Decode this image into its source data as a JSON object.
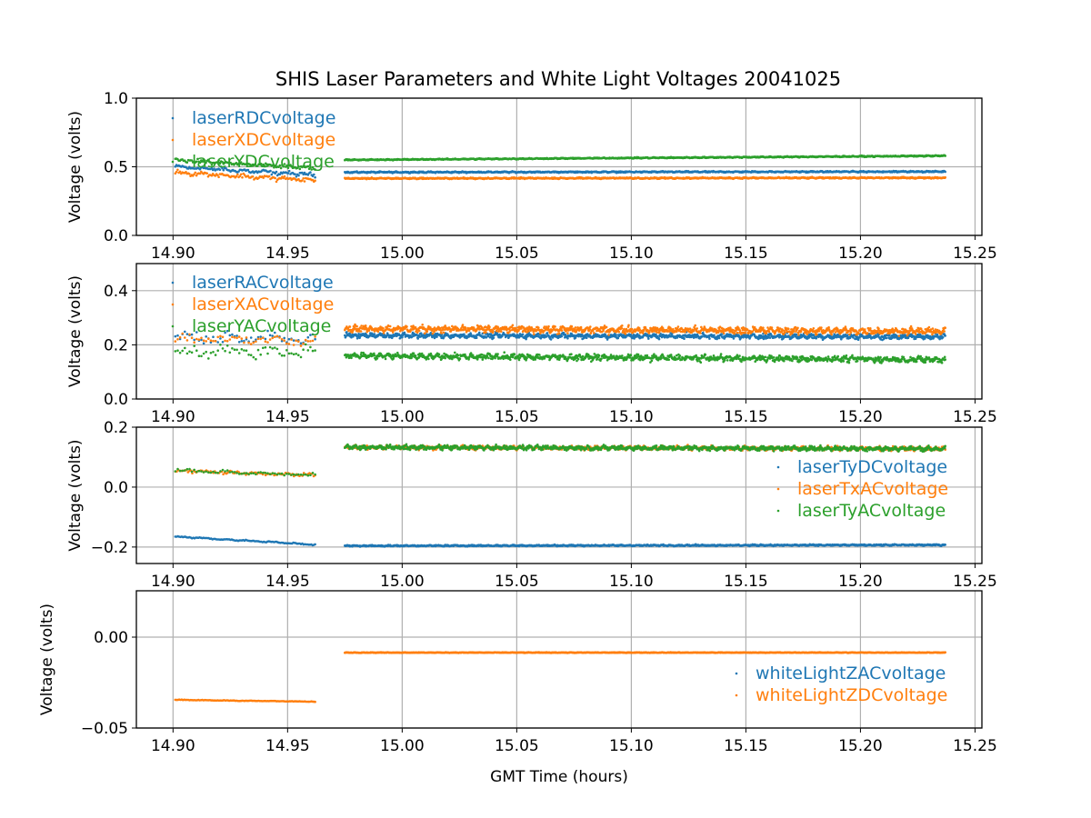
{
  "chart_data": {
    "type": "scatter",
    "title": "SHIS Laser Parameters and White Light Voltages 20041025",
    "xlabel": "GMT Time (hours)",
    "xlim": [
      14.884,
      15.253
    ],
    "xticks": [
      14.9,
      14.95,
      15.0,
      15.05,
      15.1,
      15.15,
      15.2,
      15.25
    ],
    "xtick_labels": [
      "14.90",
      "14.95",
      "15.00",
      "15.05",
      "15.10",
      "15.15",
      "15.20",
      "15.25"
    ],
    "grid": true,
    "colors": [
      "#1f77b4",
      "#ff7f0e",
      "#2ca02c"
    ],
    "subplots": [
      {
        "ylabel": "Voltage (volts)",
        "ylim": [
          0.0,
          1.0
        ],
        "yticks": [
          0.0,
          0.5,
          1.0
        ],
        "ytick_labels": [
          "0.0",
          "0.5",
          "1.0"
        ],
        "legend": "upper-left",
        "series": [
          {
            "name": "laserRDCvoltage",
            "color": "#1f77b4",
            "segments": [
              {
                "x": [
                  14.901,
                  14.962
                ],
                "y": [
                  0.5,
                  0.44
                ],
                "noise": 0.02,
                "n": 120
              },
              {
                "x": [
                  14.975,
                  15.237
                ],
                "y": [
                  0.46,
                  0.465
                ],
                "noise": 0.006,
                "n": 1300
              }
            ]
          },
          {
            "name": "laserXDCvoltage",
            "color": "#ff7f0e",
            "segments": [
              {
                "x": [
                  14.901,
                  14.962
                ],
                "y": [
                  0.46,
                  0.4
                ],
                "noise": 0.022,
                "n": 120
              },
              {
                "x": [
                  14.975,
                  15.237
                ],
                "y": [
                  0.415,
                  0.42
                ],
                "noise": 0.006,
                "n": 1300
              }
            ]
          },
          {
            "name": "laserYDCvoltage",
            "color": "#2ca02c",
            "segments": [
              {
                "x": [
                  14.901,
                  14.962
                ],
                "y": [
                  0.55,
                  0.49
                ],
                "noise": 0.02,
                "n": 120
              },
              {
                "x": [
                  14.975,
                  15.237
                ],
                "y": [
                  0.55,
                  0.58
                ],
                "noise": 0.005,
                "n": 1300
              }
            ]
          }
        ]
      },
      {
        "ylabel": "Voltage (volts)",
        "ylim": [
          0.0,
          0.5
        ],
        "yticks": [
          0.0,
          0.2,
          0.4
        ],
        "ytick_labels": [
          "0.0",
          "0.2",
          "0.4"
        ],
        "legend": "upper-left",
        "series": [
          {
            "name": "laserRACvoltage",
            "color": "#1f77b4",
            "segments": [
              {
                "x": [
                  14.901,
                  14.962
                ],
                "y": [
                  0.23,
                  0.22
                ],
                "noise": 0.03,
                "n": 60
              },
              {
                "x": [
                  14.975,
                  15.237
                ],
                "y": [
                  0.235,
                  0.23
                ],
                "noise": 0.012,
                "n": 1300
              }
            ]
          },
          {
            "name": "laserXACvoltage",
            "color": "#ff7f0e",
            "segments": [
              {
                "x": [
                  14.901,
                  14.962
                ],
                "y": [
                  0.22,
                  0.22
                ],
                "noise": 0.025,
                "n": 60
              },
              {
                "x": [
                  14.975,
                  15.237
                ],
                "y": [
                  0.26,
                  0.25
                ],
                "noise": 0.016,
                "n": 1300
              }
            ]
          },
          {
            "name": "laserYACvoltage",
            "color": "#2ca02c",
            "segments": [
              {
                "x": [
                  14.901,
                  14.962
                ],
                "y": [
                  0.17,
                  0.18
                ],
                "noise": 0.03,
                "n": 60
              },
              {
                "x": [
                  14.975,
                  15.237
                ],
                "y": [
                  0.16,
                  0.145
                ],
                "noise": 0.014,
                "n": 1300
              }
            ]
          }
        ]
      },
      {
        "ylabel": "Voltage (volts)",
        "ylim": [
          -0.255,
          0.2
        ],
        "yticks": [
          -0.2,
          0.0,
          0.2
        ],
        "ytick_labels": [
          "−0.2",
          "0.0",
          "0.2"
        ],
        "legend": "center-right",
        "series": [
          {
            "name": "laserTyDCvoltage",
            "color": "#1f77b4",
            "segments": [
              {
                "x": [
                  14.901,
                  14.962
                ],
                "y": [
                  -0.165,
                  -0.192
                ],
                "noise": 0.003,
                "n": 110
              },
              {
                "x": [
                  14.975,
                  15.237
                ],
                "y": [
                  -0.196,
                  -0.193
                ],
                "noise": 0.003,
                "n": 1300
              }
            ]
          },
          {
            "name": "laserTxACvoltage",
            "color": "#ff7f0e",
            "segments": [
              {
                "x": [
                  14.901,
                  14.962
                ],
                "y": [
                  0.055,
                  0.04
                ],
                "noise": 0.007,
                "n": 100
              },
              {
                "x": [
                  14.975,
                  15.237
                ],
                "y": [
                  0.133,
                  0.128
                ],
                "noise": 0.009,
                "n": 1300
              }
            ]
          },
          {
            "name": "laserTyACvoltage",
            "color": "#2ca02c",
            "segments": [
              {
                "x": [
                  14.901,
                  14.962
                ],
                "y": [
                  0.055,
                  0.04
                ],
                "noise": 0.008,
                "n": 60
              },
              {
                "x": [
                  14.975,
                  15.237
                ],
                "y": [
                  0.133,
                  0.128
                ],
                "noise": 0.01,
                "n": 1300
              }
            ]
          }
        ]
      },
      {
        "ylabel": "Voltage (volts)",
        "ylim": [
          -0.05,
          0.0255
        ],
        "yticks": [
          -0.05,
          0.0
        ],
        "ytick_labels": [
          "−0.05",
          "0.00"
        ],
        "legend": "center-right",
        "series": [
          {
            "name": "whiteLightZACvoltage",
            "color": "#1f77b4",
            "segments": []
          },
          {
            "name": "whiteLightZDCvoltage",
            "color": "#ff7f0e",
            "segments": [
              {
                "x": [
                  14.901,
                  14.962
                ],
                "y": [
                  -0.0345,
                  -0.0355
                ],
                "noise": 0.0002,
                "n": 110
              },
              {
                "x": [
                  14.975,
                  15.237
                ],
                "y": [
                  -0.0085,
                  -0.0085
                ],
                "noise": 0.0002,
                "n": 1300
              }
            ]
          }
        ]
      }
    ]
  }
}
